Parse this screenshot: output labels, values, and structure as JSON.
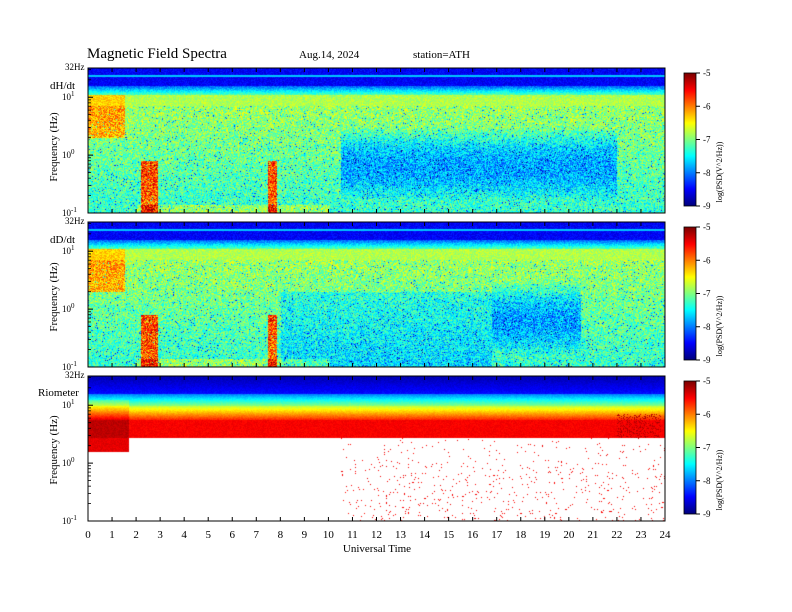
{
  "header": {
    "title": "Magnetic  Field  Spectra",
    "date": "Aug.14, 2024",
    "station": "station=ATH"
  },
  "chart_data": [
    {
      "type": "heatmap",
      "panel": "dH/dt",
      "top_label": "32Hz",
      "ylabel": "Frequency  (Hz)",
      "yscale": "log",
      "ylim": [
        0.1,
        32
      ],
      "y_ticks": [
        {
          "base": "10",
          "exp": "1",
          "value": 10
        },
        {
          "base": "10",
          "exp": "0",
          "value": 1
        },
        {
          "base": "10",
          "exp": "-1",
          "value": 0.1
        }
      ],
      "xlim": [
        0,
        24
      ],
      "colorbar": {
        "label": "log(PSD(V^2/Hz))",
        "ticks": [
          "-5",
          "-6",
          "-7",
          "-8",
          "-9"
        ],
        "range": [
          -9,
          -5
        ]
      },
      "features": {
        "bursts_utc": [
          2.5,
          7.6
        ],
        "low_band_ut": [
          10.5,
          22
        ]
      }
    },
    {
      "type": "heatmap",
      "panel": "dD/dt",
      "top_label": "32Hz",
      "ylabel": "Frequency  (Hz)",
      "yscale": "log",
      "ylim": [
        0.1,
        32
      ],
      "y_ticks": [
        {
          "base": "10",
          "exp": "1",
          "value": 10
        },
        {
          "base": "10",
          "exp": "0",
          "value": 1
        },
        {
          "base": "10",
          "exp": "-1",
          "value": 0.1
        }
      ],
      "xlim": [
        0,
        24
      ],
      "colorbar": {
        "label": "log(PSD(V^2/Hz))",
        "ticks": [
          "-5",
          "-6",
          "-7",
          "-8",
          "-9"
        ],
        "range": [
          -9,
          -5
        ]
      },
      "features": {
        "bursts_utc": [
          2.5,
          7.6
        ],
        "low_band_ut": [
          16.8,
          20.5
        ]
      }
    },
    {
      "type": "heatmap",
      "panel": "Riometer",
      "top_label": "32Hz",
      "ylabel": "Frequency  (Hz)",
      "yscale": "log",
      "ylim": [
        0.1,
        32
      ],
      "y_ticks": [
        {
          "base": "10",
          "exp": "1",
          "value": 10
        },
        {
          "base": "10",
          "exp": "0",
          "value": 1
        },
        {
          "base": "10",
          "exp": "-1",
          "value": 0.1
        }
      ],
      "xlim": [
        0,
        24
      ],
      "colorbar": {
        "label": "log(PSD(V^2/Hz))",
        "ticks": [
          "-5",
          "-6",
          "-7",
          "-8",
          "-9"
        ],
        "range": [
          -9,
          -5
        ]
      },
      "features": {
        "enhanced_ut": [
          0,
          1.7
        ],
        "noise_from_ut": 10.5
      }
    }
  ],
  "x_axis": {
    "label": "Universal Time",
    "ticks": [
      "0",
      "1",
      "2",
      "3",
      "4",
      "5",
      "6",
      "7",
      "8",
      "9",
      "10",
      "11",
      "12",
      "13",
      "14",
      "15",
      "16",
      "17",
      "18",
      "19",
      "20",
      "21",
      "22",
      "23",
      "24"
    ]
  }
}
